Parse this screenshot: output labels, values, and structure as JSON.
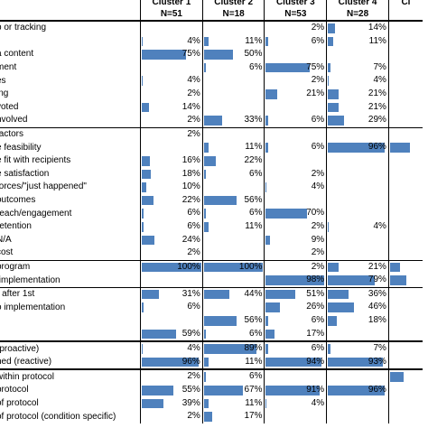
{
  "headers": {
    "clusters": [
      "Cluster 1",
      "Cluster 2",
      "Cluster 3",
      "Cluster 4",
      "Cl"
    ],
    "ns": [
      "N=51",
      "N=18",
      "N=53",
      "N=28",
      ""
    ]
  },
  "colors": {
    "bar": "#4f81bd"
  },
  "rows": [
    {
      "label": "p or tracking",
      "values": [
        null,
        null,
        2,
        14
      ],
      "shown": [
        "",
        "",
        "2%",
        "14%"
      ],
      "group_start": false
    },
    {
      "label": "",
      "values": [
        4,
        11,
        6,
        11
      ],
      "shown": [
        "4%",
        "11%",
        "6%",
        "11%"
      ],
      "group_start": false
    },
    {
      "label": "a content",
      "values": [
        75,
        50,
        null,
        null
      ],
      "shown": [
        "75%",
        "50%",
        "",
        ""
      ],
      "group_start": false
    },
    {
      "label": "ment",
      "values": [
        null,
        6,
        75,
        7
      ],
      "shown": [
        "",
        "6%",
        "75%",
        "7%"
      ],
      "group_start": false
    },
    {
      "label": "es",
      "values": [
        4,
        null,
        2,
        4
      ],
      "shown": [
        "4%",
        "",
        "2%",
        "4%"
      ],
      "group_start": false
    },
    {
      "label": "ing",
      "values": [
        2,
        null,
        21,
        21
      ],
      "shown": [
        "2%",
        "",
        "21%",
        "21%"
      ],
      "group_start": false
    },
    {
      "label": "voted",
      "values": [
        14,
        null,
        null,
        21
      ],
      "shown": [
        "14%",
        "",
        "",
        "21%"
      ],
      "group_start": false
    },
    {
      "label": "nvolved",
      "values": [
        2,
        33,
        6,
        29
      ],
      "shown": [
        "2%",
        "33%",
        "6%",
        "29%"
      ],
      "group_start": false
    },
    {
      "label": "factors",
      "values": [
        2,
        null,
        null,
        null
      ],
      "shown": [
        "2%",
        "",
        "",
        ""
      ],
      "group_start": true
    },
    {
      "label": "e feasibility",
      "values": [
        null,
        11,
        6,
        96
      ],
      "shown": [
        "",
        "11%",
        "6%",
        "96%"
      ],
      "group_start": false
    },
    {
      "label": "e fit with recipients",
      "values": [
        16,
        22,
        null,
        null
      ],
      "shown": [
        "16%",
        "22%",
        "",
        ""
      ],
      "group_start": false
    },
    {
      "label": "e satisfaction",
      "values": [
        18,
        6,
        2,
        null
      ],
      "shown": [
        "18%",
        "6%",
        "2%",
        ""
      ],
      "group_start": false
    },
    {
      "label": "forces/\"just happened\"",
      "values": [
        10,
        null,
        4,
        null
      ],
      "shown": [
        "10%",
        "",
        "4%",
        ""
      ],
      "group_start": false
    },
    {
      "label": "outcomes",
      "values": [
        22,
        56,
        null,
        null
      ],
      "shown": [
        "22%",
        "56%",
        "",
        ""
      ],
      "group_start": false
    },
    {
      "label": "reach/engagement",
      "values": [
        6,
        6,
        70,
        null
      ],
      "shown": [
        "6%",
        "6%",
        "70%",
        ""
      ],
      "group_start": false
    },
    {
      "label": "retention",
      "values": [
        6,
        11,
        2,
        4
      ],
      "shown": [
        "6%",
        "11%",
        "2%",
        "4%"
      ],
      "group_start": false
    },
    {
      "label": "N/A",
      "values": [
        24,
        null,
        9,
        null
      ],
      "shown": [
        "24%",
        "",
        "9%",
        ""
      ],
      "group_start": false
    },
    {
      "label": "cost",
      "values": [
        2,
        null,
        2,
        null
      ],
      "shown": [
        "2%",
        "",
        "2%",
        ""
      ],
      "group_start": false
    },
    {
      "label": "program",
      "values": [
        100,
        100,
        2,
        21
      ],
      "shown": [
        "100%",
        "100%",
        "2%",
        "21%"
      ],
      "group_start": true
    },
    {
      "label": "/implementation",
      "values": [
        null,
        null,
        98,
        79
      ],
      "shown": [
        "",
        "",
        "98%",
        "79%"
      ],
      "group_start": false
    },
    {
      "label": "r after 1st",
      "values": [
        31,
        44,
        51,
        36
      ],
      "shown": [
        "31%",
        "44%",
        "51%",
        "36%"
      ],
      "group_start": true
    },
    {
      "label": "o implementation",
      "values": [
        6,
        null,
        26,
        46
      ],
      "shown": [
        "6%",
        "",
        "26%",
        "46%"
      ],
      "group_start": false
    },
    {
      "label": "",
      "values": [
        null,
        56,
        6,
        18
      ],
      "shown": [
        "",
        "56%",
        "6%",
        "18%"
      ],
      "group_start": false
    },
    {
      "label": "",
      "values": [
        59,
        6,
        17,
        null
      ],
      "shown": [
        "59%",
        "6%",
        "17%",
        ""
      ],
      "group_start": false
    },
    {
      "label": "(proactive)",
      "values": [
        4,
        89,
        6,
        7
      ],
      "shown": [
        "4%",
        "89%",
        "6%",
        "7%"
      ],
      "group_start": true,
      "thick": true
    },
    {
      "label": "ned (reactive)",
      "values": [
        96,
        11,
        94,
        93
      ],
      "shown": [
        "96%",
        "11%",
        "94%",
        "93%"
      ],
      "group_start": false
    },
    {
      "label": " within protocol",
      "values": [
        2,
        6,
        null,
        null
      ],
      "shown": [
        "2%",
        "6%",
        "",
        ""
      ],
      "group_start": true,
      "thick": true
    },
    {
      "label": "protocol",
      "values": [
        55,
        67,
        91,
        96
      ],
      "shown": [
        "55%",
        "67%",
        "91%",
        "96%"
      ],
      "group_start": false
    },
    {
      "label": " of protocol",
      "values": [
        39,
        11,
        4,
        null
      ],
      "shown": [
        "39%",
        "11%",
        "4%",
        ""
      ],
      "group_start": false
    },
    {
      "label": " of protocol (condition specific)",
      "values": [
        2,
        17,
        null,
        null
      ],
      "shown": [
        "2%",
        "17%",
        "",
        ""
      ],
      "group_start": false
    }
  ],
  "cut_column": [
    {
      "row": 9,
      "value": 60
    },
    {
      "row": 18,
      "value": 30
    },
    {
      "row": 19,
      "value": 50
    },
    {
      "row": 26,
      "value": 40
    }
  ]
}
